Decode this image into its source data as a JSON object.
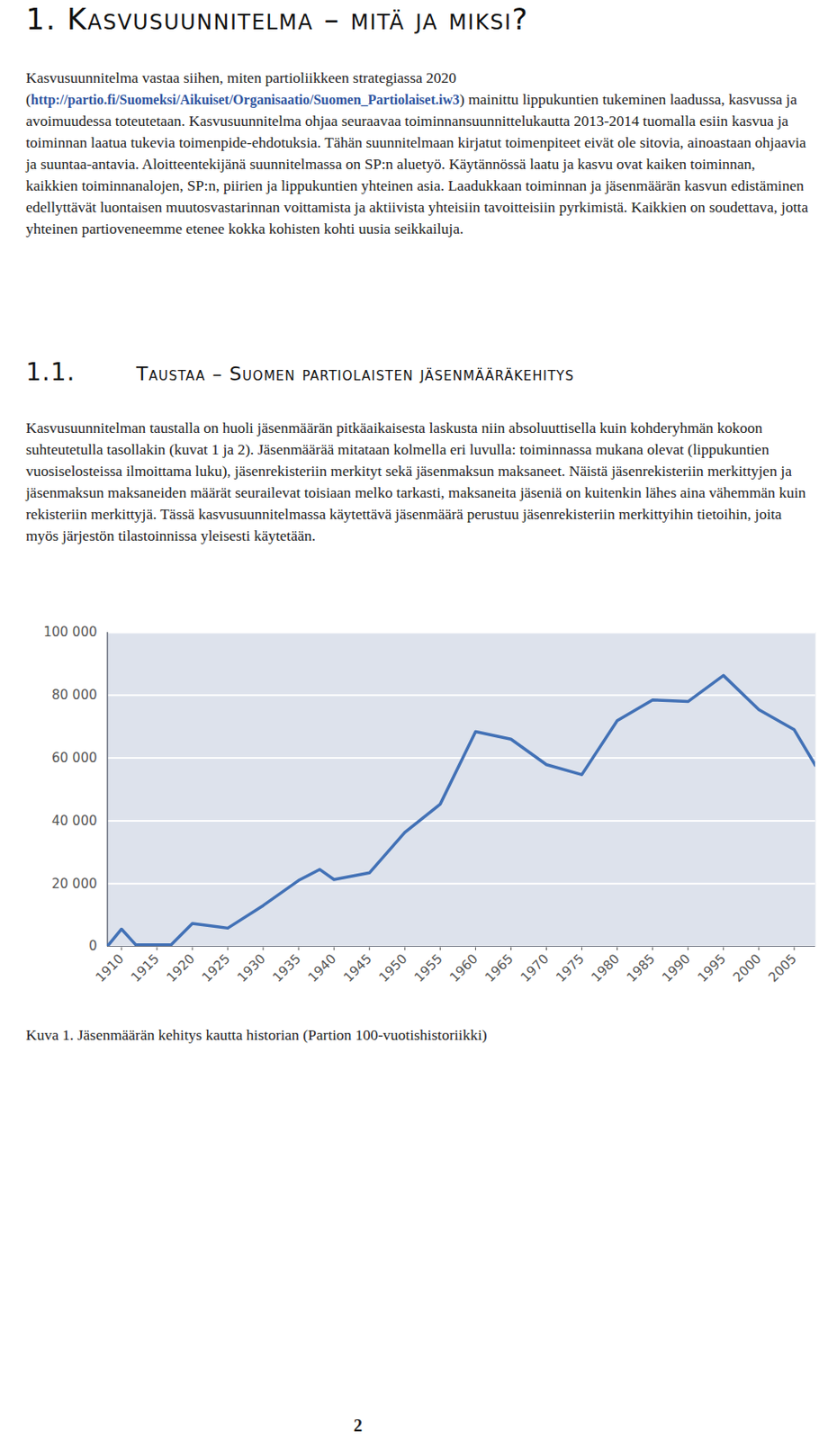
{
  "heading": "1. Kasvusuunnitelma – mitä ja miksi?",
  "intro": {
    "before": "Kasvusuunnitelma vastaa siihen, miten partioliikkeen strategiassa 2020 (",
    "link": "http://partio.fi/Suomeksi/Aikuiset/Organisaatio/Suomen_Partiolaiset.iw3",
    "after": ") mainittu lippukuntien tukeminen laadussa, kasvussa ja avoimuudessa toteutetaan. Kasvusuunnitelma ohjaa seuraavaa toiminnansuunnittelukautta 2013-2014 tuomalla esiin kasvua ja toiminnan laatua tukevia toimenpide-ehdotuksia. Tähän suunnitelmaan kirjatut toimenpiteet eivät ole sitovia, ainoastaan ohjaavia ja suuntaa-antavia. Aloitteentekijänä suunnitelmassa on SP:n aluetyö. Käytännössä laatu ja kasvu ovat kaiken toiminnan, kaikkien toiminnanalojen, SP:n, piirien ja lippukuntien yhteinen asia. Laadukkaan toiminnan ja jäsenmäärän kasvun edistäminen edellyttävät luontaisen muutosvastarinnan voittamista ja aktiivista yhteisiin tavoitteisiin pyrkimistä. Kaikkien on soudettava, jotta yhteinen partioveneemme etenee kokka kohisten kohti uusia seikkailuja."
  },
  "section": {
    "number": "1.1.",
    "title": "Taustaa – Suomen partiolaisten jäsenmääräkehitys",
    "text": "Kasvusuunnitelman taustalla on huoli jäsenmäärän pitkäaikaisesta laskusta niin absoluuttisella kuin kohderyhmän kokoon suhteutetulla tasollakin (kuvat 1 ja 2). Jäsenmäärää mitataan kolmella eri luvulla: toiminnassa mukana olevat (lippukuntien vuosiselosteissa ilmoittama luku), jäsenrekisteriin merkityt sekä jäsenmaksun maksaneet. Näistä jäsenrekisteriin merkittyjen ja jäsenmaksun maksaneiden määrät seurailevat toisiaan melko tarkasti, maksaneita jäseniä on kuitenkin lähes aina vähemmän kuin rekisteriin merkittyjä. Tässä kasvusuunnitelmassa käytettävä jäsenmäärä perustuu jäsenrekisteriin merkittyihin tietoihin, joita myös järjestön tilastoinnissa yleisesti käytetään."
  },
  "chart_data": {
    "type": "line",
    "color": "#4271b6",
    "grid": true,
    "x": [
      1908,
      1910,
      1912,
      1917,
      1920,
      1925,
      1930,
      1935,
      1938,
      1940,
      1945,
      1950,
      1955,
      1960,
      1965,
      1970,
      1975,
      1980,
      1985,
      1990,
      1995,
      2000,
      2005,
      2008
    ],
    "values": [
      0,
      5500,
      500,
      500,
      7300,
      5800,
      13000,
      21000,
      24500,
      21300,
      23400,
      36300,
      45300,
      68400,
      66000,
      57900,
      54700,
      71900,
      78500,
      78000,
      86300,
      75400,
      69000,
      57600
    ],
    "xlim": [
      1908,
      2008
    ],
    "xticks": [
      1910,
      1915,
      1920,
      1925,
      1930,
      1935,
      1940,
      1945,
      1950,
      1955,
      1960,
      1965,
      1970,
      1975,
      1980,
      1985,
      1990,
      1995,
      2000,
      2005
    ],
    "ylim": [
      0,
      100000
    ],
    "yticks": [
      0,
      {
        "value": 20000,
        "label": "20 000"
      },
      {
        "value": 40000,
        "label": "40 000"
      },
      {
        "value": 60000,
        "label": "60 000"
      },
      {
        "value": 80000,
        "label": "80 000"
      },
      {
        "value": 100000,
        "label": "100 000"
      }
    ]
  },
  "caption": "Kuva 1. Jäsenmäärän kehitys kautta historian (Partion 100-vuotishistoriikki)",
  "page_number": "2"
}
